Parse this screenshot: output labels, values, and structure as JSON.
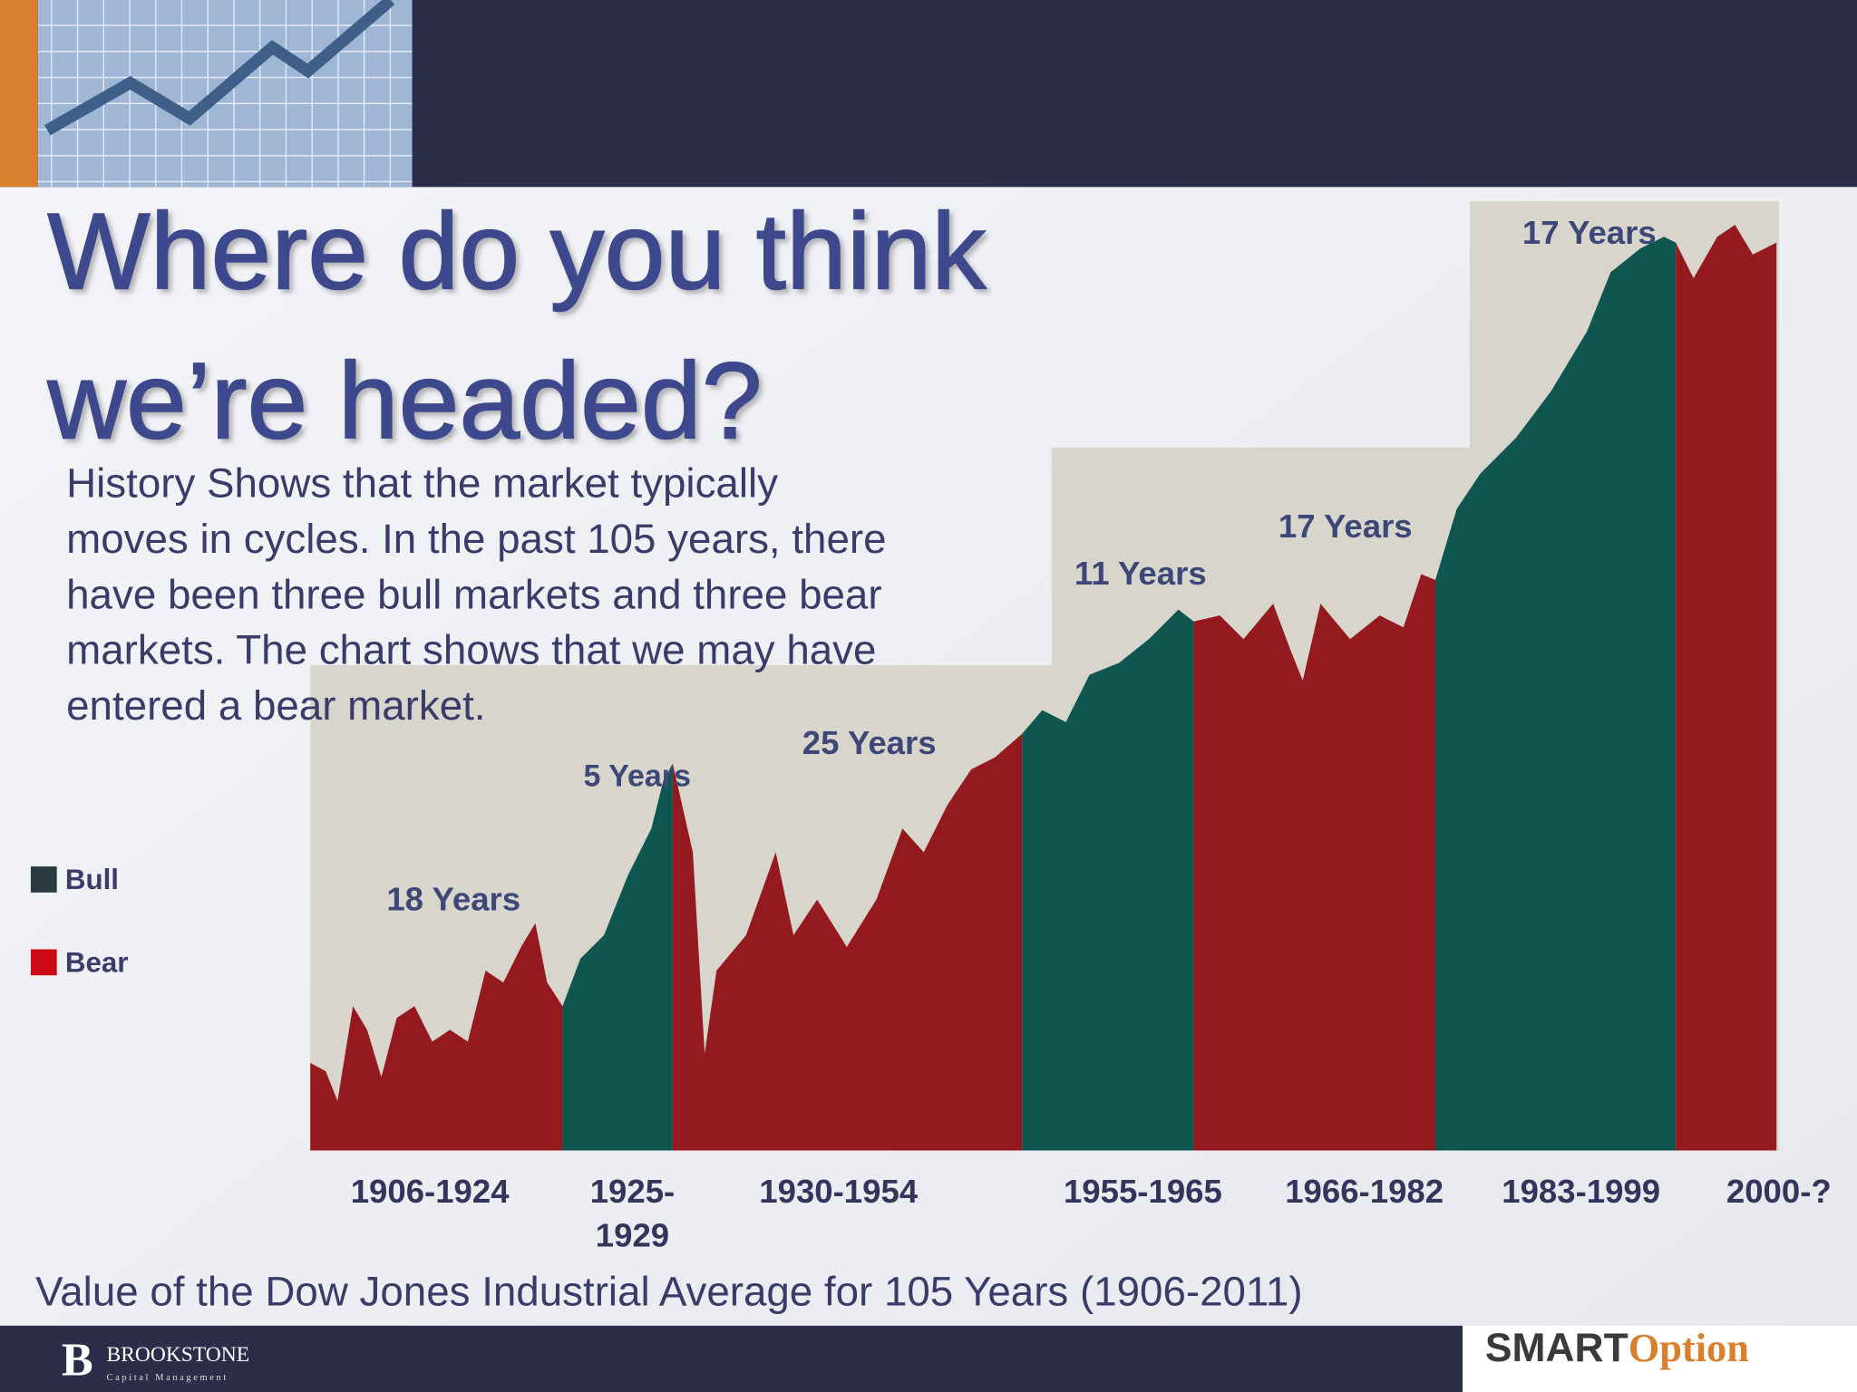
{
  "header": {
    "title_lines": [
      "Where do you think",
      "we’re headed?"
    ]
  },
  "body_lines": [
    "History Shows that the market typically",
    "moves in cycles. In the past 105 years, there",
    "have been three bull markets and three bear",
    "markets. The chart shows that we may have",
    "entered a bear market."
  ],
  "legend": [
    "Bull",
    "Bear"
  ],
  "periods": [
    {
      "label": [
        "1906-1924"
      ],
      "duration": "18 Years"
    },
    {
      "label": [
        "1925-",
        "1929"
      ],
      "duration": "5 Years"
    },
    {
      "label": [
        "1930-1954"
      ],
      "duration": "25 Years"
    },
    {
      "label": [
        "1955-1965"
      ],
      "duration": "11 Years"
    },
    {
      "label": [
        "1966-1982"
      ],
      "duration": "17 Years"
    },
    {
      "label": [
        "1983-1999"
      ],
      "duration": "17 Years"
    },
    {
      "label": [
        "2000-?"
      ]
    }
  ],
  "caption": "Value of the Dow Jones Industrial Average  for 105 Years (1906-2011)",
  "logos": {
    "left": "BROOKSTONE",
    "left_sub": "Capital Management",
    "right_a": "SMART",
    "right_b": "Option"
  }
}
